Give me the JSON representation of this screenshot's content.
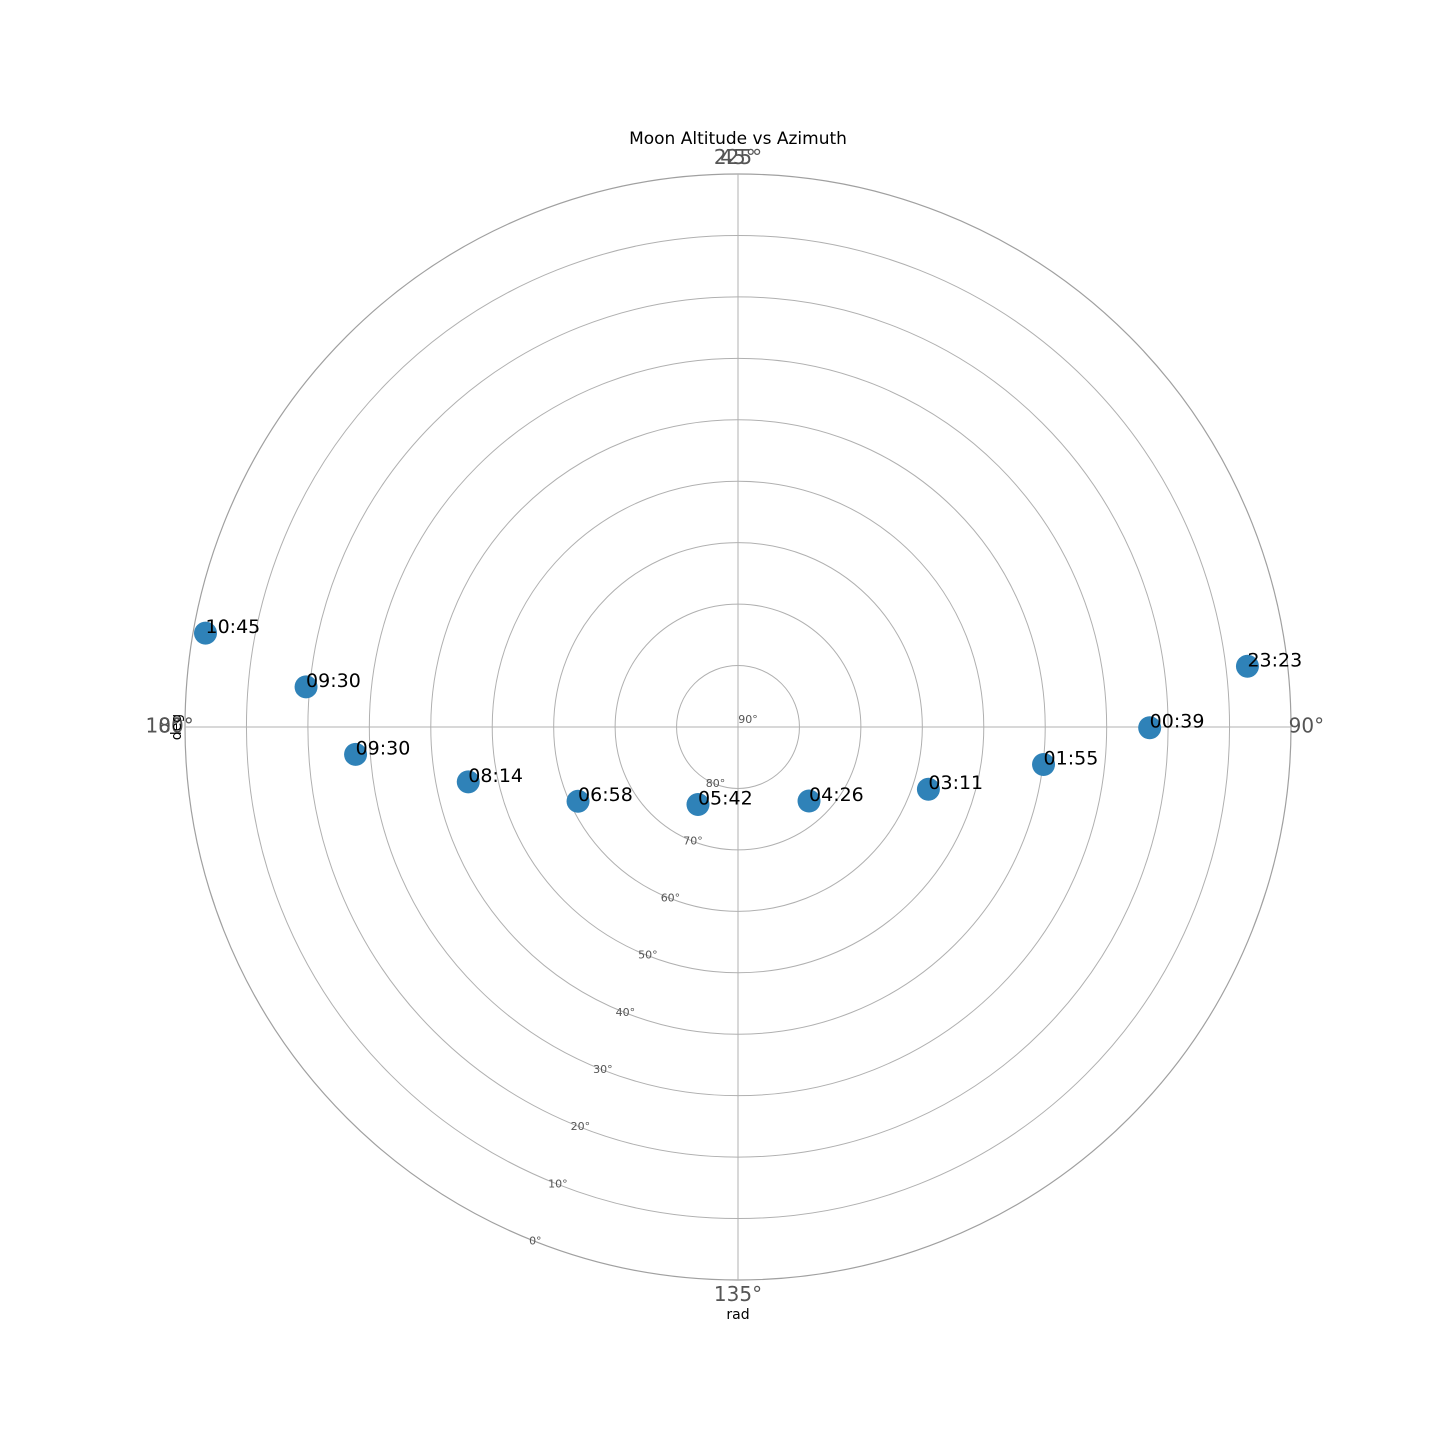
{
  "chart_data": {
    "type": "scatter",
    "projection": "polar",
    "title": "Moon Altitude vs Azimuth",
    "xlabel": "rad",
    "ylabel": "deg",
    "theta_tick_labels": [
      {
        "text": "225°",
        "direction_deg": 90
      },
      {
        "text": "45°",
        "direction_deg": 90
      },
      {
        "text": "90°",
        "direction_deg": 0
      },
      {
        "text": "135°",
        "direction_deg": 270
      },
      {
        "text": "180°",
        "direction_deg": 180
      },
      {
        "text": "0°",
        "direction_deg": 180
      }
    ],
    "radial_axis": {
      "quantity": "altitude",
      "center_value": 90,
      "edge_value": 0,
      "ticks": [
        90,
        80,
        70,
        60,
        50,
        40,
        30,
        20,
        10,
        0
      ],
      "tick_labels": [
        "90°",
        "80°",
        "70°",
        "60°",
        "50°",
        "40°",
        "30°",
        "20°",
        "10°",
        "0°"
      ]
    },
    "grid": true,
    "points": [
      {
        "label": "23:23",
        "direction_deg": 6.8,
        "altitude": 6.5
      },
      {
        "label": "00:39",
        "direction_deg": -0.1,
        "altitude": 23.0
      },
      {
        "label": "01:55",
        "direction_deg": -7.0,
        "altitude": 39.9
      },
      {
        "label": "03:11",
        "direction_deg": -18.1,
        "altitude": 57.4
      },
      {
        "label": "04:26",
        "direction_deg": -46.2,
        "altitude": 73.3
      },
      {
        "label": "05:42",
        "direction_deg": -117.3,
        "altitude": 75.8
      },
      {
        "label": "06:58",
        "direction_deg": -155.1,
        "altitude": 61.3
      },
      {
        "label": "08:14",
        "direction_deg": -168.5,
        "altitude": 45.2
      },
      {
        "label": "09:30",
        "direction_deg": -175.9,
        "altitude": 27.6
      },
      {
        "label": "09:30",
        "direction_deg": 174.7,
        "altitude": 19.4
      },
      {
        "label": "10:45",
        "direction_deg": 170.0,
        "altitude": 2.0
      }
    ]
  }
}
